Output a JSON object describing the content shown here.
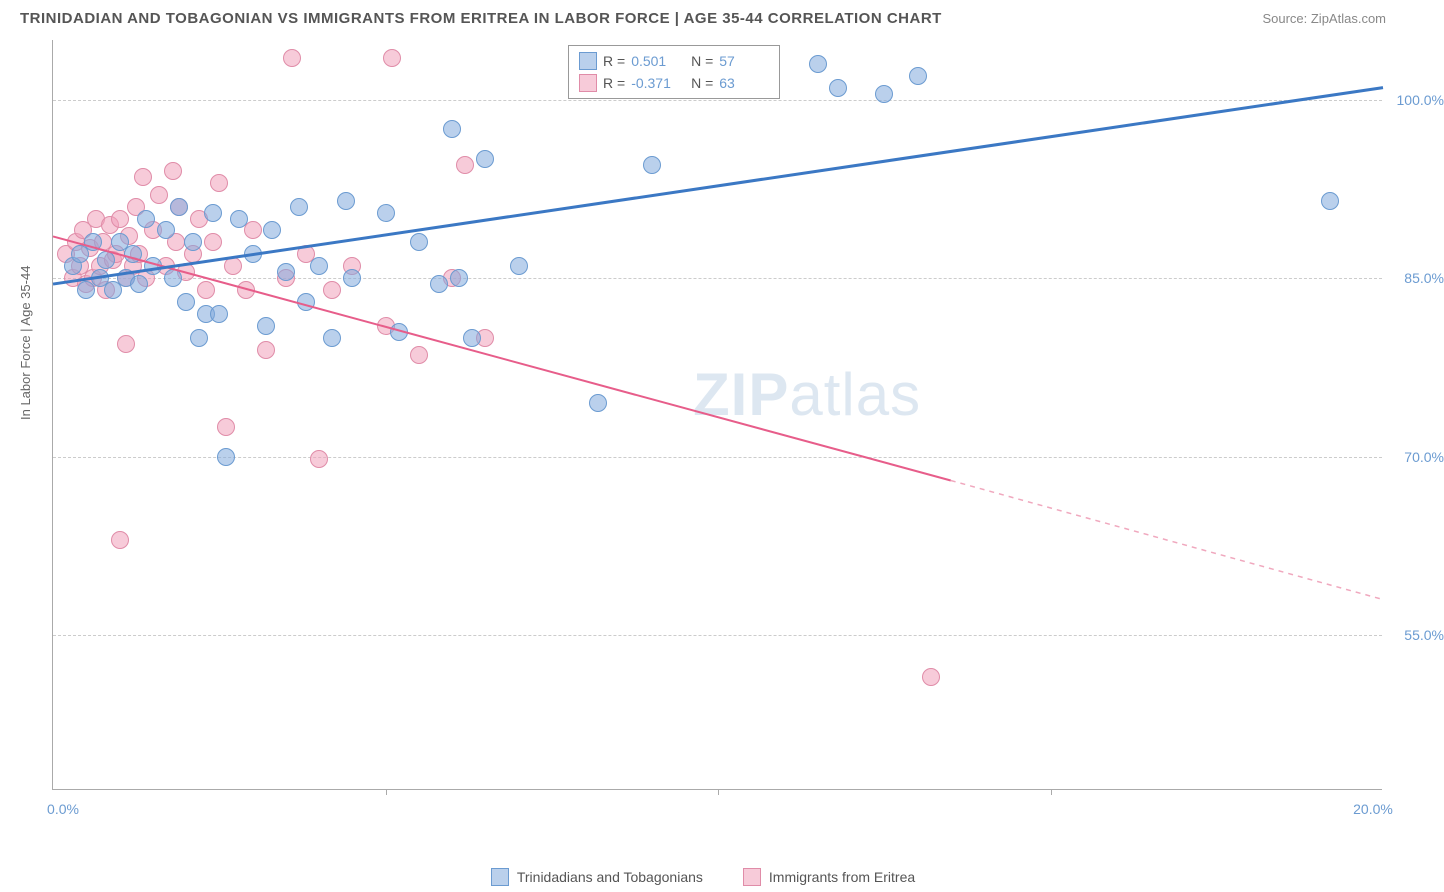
{
  "title": "TRINIDADIAN AND TOBAGONIAN VS IMMIGRANTS FROM ERITREA IN LABOR FORCE | AGE 35-44 CORRELATION CHART",
  "source": "Source: ZipAtlas.com",
  "y_axis_label": "In Labor Force | Age 35-44",
  "watermark": "ZIPatlas",
  "chart": {
    "type": "scatter",
    "xlim": [
      0,
      20
    ],
    "ylim": [
      42,
      105
    ],
    "x_ticks": [
      0,
      5,
      10,
      15,
      20
    ],
    "x_tick_labels": [
      "0.0%",
      "",
      "",
      "",
      "20.0%"
    ],
    "y_ticks": [
      55,
      70,
      85,
      100
    ],
    "y_tick_labels": [
      "55.0%",
      "70.0%",
      "85.0%",
      "100.0%"
    ],
    "background_color": "#ffffff",
    "grid_color": "#cccccc",
    "point_radius": 9,
    "series_a": {
      "name": "Trinidadians and Tobagonians",
      "color_fill": "rgba(130,170,220,0.55)",
      "color_stroke": "#6b9bd1",
      "R": "0.501",
      "N": "57",
      "trend": {
        "x1": 0,
        "y1": 84.5,
        "x2": 20,
        "y2": 101,
        "color": "#3b78c4",
        "width": 3
      },
      "points": [
        [
          0.3,
          86
        ],
        [
          0.4,
          87
        ],
        [
          0.5,
          84
        ],
        [
          0.6,
          88
        ],
        [
          0.7,
          85
        ],
        [
          0.8,
          86.5
        ],
        [
          0.9,
          84
        ],
        [
          1.0,
          88
        ],
        [
          1.1,
          85
        ],
        [
          1.2,
          87
        ],
        [
          1.3,
          84.5
        ],
        [
          1.4,
          90
        ],
        [
          1.5,
          86
        ],
        [
          1.7,
          89
        ],
        [
          1.8,
          85
        ],
        [
          1.9,
          91
        ],
        [
          2.0,
          83
        ],
        [
          2.1,
          88
        ],
        [
          2.2,
          80
        ],
        [
          2.3,
          82
        ],
        [
          2.4,
          90.5
        ],
        [
          2.5,
          82
        ],
        [
          2.6,
          70
        ],
        [
          2.8,
          90
        ],
        [
          3.0,
          87
        ],
        [
          3.2,
          81
        ],
        [
          3.3,
          89
        ],
        [
          3.5,
          85.5
        ],
        [
          3.7,
          91
        ],
        [
          3.8,
          83
        ],
        [
          4.0,
          86
        ],
        [
          4.2,
          80
        ],
        [
          4.4,
          91.5
        ],
        [
          4.5,
          85
        ],
        [
          5.0,
          90.5
        ],
        [
          5.2,
          80.5
        ],
        [
          5.5,
          88
        ],
        [
          5.8,
          84.5
        ],
        [
          6.0,
          97.5
        ],
        [
          6.1,
          85
        ],
        [
          6.3,
          80
        ],
        [
          6.5,
          95
        ],
        [
          7.0,
          86
        ],
        [
          8.2,
          74.5
        ],
        [
          9.0,
          94.5
        ],
        [
          11.5,
          103
        ],
        [
          11.8,
          101
        ],
        [
          12.5,
          100.5
        ],
        [
          13.0,
          102
        ],
        [
          19.2,
          91.5
        ]
      ]
    },
    "series_b": {
      "name": "Immigrants from Eritrea",
      "color_fill": "rgba(240,160,185,0.55)",
      "color_stroke": "#e08ca8",
      "R": "-0.371",
      "N": "63",
      "trend": {
        "x1": 0,
        "y1": 88.5,
        "x2": 13.5,
        "y2": 68,
        "color": "#e75d8a",
        "width": 2
      },
      "trend_dash": {
        "x1": 13.5,
        "y1": 68,
        "x2": 20,
        "y2": 58,
        "color": "#f0a8be",
        "width": 1.5
      },
      "points": [
        [
          0.2,
          87
        ],
        [
          0.3,
          85
        ],
        [
          0.35,
          88
        ],
        [
          0.4,
          86
        ],
        [
          0.45,
          89
        ],
        [
          0.5,
          84.5
        ],
        [
          0.55,
          87.5
        ],
        [
          0.6,
          85
        ],
        [
          0.65,
          90
        ],
        [
          0.7,
          86
        ],
        [
          0.75,
          88
        ],
        [
          0.8,
          84
        ],
        [
          0.85,
          89.5
        ],
        [
          0.9,
          86.5
        ],
        [
          0.95,
          87
        ],
        [
          1.0,
          90
        ],
        [
          1.1,
          85
        ],
        [
          1.15,
          88.5
        ],
        [
          1.2,
          86
        ],
        [
          1.25,
          91
        ],
        [
          1.3,
          87
        ],
        [
          1.35,
          93.5
        ],
        [
          1.4,
          85
        ],
        [
          1.5,
          89
        ],
        [
          1.6,
          92
        ],
        [
          1.7,
          86
        ],
        [
          1.8,
          94
        ],
        [
          1.85,
          88
        ],
        [
          1.9,
          91
        ],
        [
          2.0,
          85.5
        ],
        [
          2.1,
          87
        ],
        [
          2.2,
          90
        ],
        [
          2.3,
          84
        ],
        [
          2.4,
          88
        ],
        [
          2.5,
          93
        ],
        [
          2.7,
          86
        ],
        [
          2.9,
          84
        ],
        [
          3.0,
          89
        ],
        [
          3.2,
          79
        ],
        [
          3.5,
          85
        ],
        [
          3.6,
          103.5
        ],
        [
          3.8,
          87
        ],
        [
          4.0,
          69.8
        ],
        [
          4.2,
          84
        ],
        [
          4.5,
          86
        ],
        [
          5.0,
          81
        ],
        [
          5.1,
          103.5
        ],
        [
          5.5,
          78.5
        ],
        [
          6.0,
          85
        ],
        [
          6.2,
          94.5
        ],
        [
          6.5,
          80
        ],
        [
          1.0,
          63
        ],
        [
          1.1,
          79.5
        ],
        [
          2.6,
          72.5
        ],
        [
          13.2,
          51.5
        ]
      ]
    }
  },
  "legend_bottom": [
    {
      "swatch_fill": "rgba(130,170,220,0.55)",
      "swatch_stroke": "#6b9bd1",
      "label": "Trinidadians and Tobagonians"
    },
    {
      "swatch_fill": "rgba(240,160,185,0.55)",
      "swatch_stroke": "#e08ca8",
      "label": "Immigrants from Eritrea"
    }
  ]
}
